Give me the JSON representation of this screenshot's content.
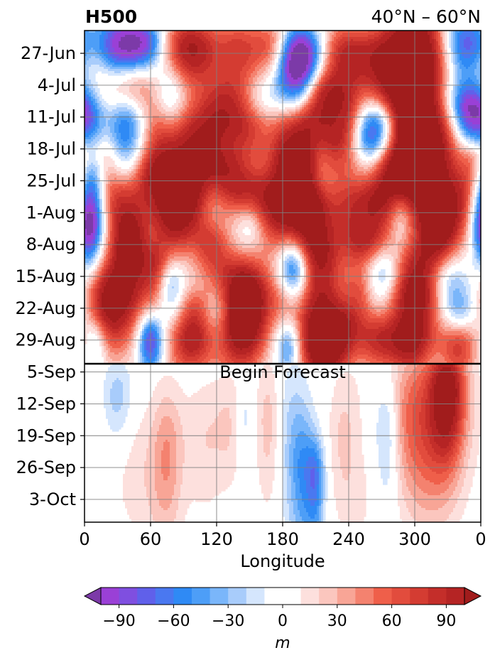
{
  "chart_data": {
    "type": "heatmap",
    "title": "H500",
    "subtitle": "40°N – 60°N",
    "xlabel": "Longitude",
    "ylabel": "",
    "x_ticks": [
      "0",
      "60",
      "120",
      "180",
      "240",
      "300",
      "0"
    ],
    "x_tick_values": [
      0,
      60,
      120,
      180,
      240,
      300,
      360
    ],
    "xlim": [
      0,
      360
    ],
    "y_ticks": [
      "27-Jun",
      "4-Jul",
      "11-Jul",
      "18-Jul",
      "25-Jul",
      "1-Aug",
      "8-Aug",
      "15-Aug",
      "22-Aug",
      "29-Aug",
      "5-Sep",
      "12-Sep",
      "19-Sep",
      "26-Sep",
      "3-Oct"
    ],
    "y_tick_days": [
      5,
      12,
      19,
      26,
      33,
      40,
      47,
      54,
      61,
      68,
      75,
      82,
      89,
      96,
      103
    ],
    "ylim_days": [
      0,
      108
    ],
    "y_inverted": true,
    "grid": true,
    "forecast_line": {
      "day": 73.2,
      "label": "Begin Forecast"
    },
    "colorbar": {
      "label": "m",
      "ticks": [
        -90,
        -60,
        -30,
        0,
        30,
        60,
        90
      ],
      "tick_labels": [
        "−90",
        "−60",
        "−30",
        "0",
        "30",
        "60",
        "90"
      ],
      "range": [
        -105,
        105
      ],
      "step": 10,
      "extend": "both",
      "under_color": "#7c3aa8",
      "over_color": "#a11c1c",
      "colors": [
        "#9a40d6",
        "#7f4fe0",
        "#6060ea",
        "#4a78f0",
        "#2f8af5",
        "#4d9ef7",
        "#7ab6fa",
        "#a8ccfb",
        "#d5e6fd",
        "#ffffff",
        "#ffffff",
        "#fde0dd",
        "#fbc6be",
        "#f8a596",
        "#f4826f",
        "#ef5f4a",
        "#e24c3d",
        "#d43c32",
        "#c42e2a",
        "#b52424"
      ]
    },
    "features": {
      "observed": [
        [
          5,
          30,
          6,
          14,
          6,
          -100
        ],
        [
          3,
          55,
          4,
          14,
          5,
          -95
        ],
        [
          4,
          85,
          5,
          16,
          6,
          75
        ],
        [
          4,
          105,
          5,
          14,
          6,
          60
        ],
        [
          4,
          140,
          5,
          16,
          6,
          70
        ],
        [
          3,
          170,
          4,
          12,
          5,
          50
        ],
        [
          9,
          190,
          6,
          12,
          6,
          -90
        ],
        [
          5,
          200,
          4,
          12,
          5,
          -80
        ],
        [
          5,
          235,
          5,
          14,
          6,
          75
        ],
        [
          6,
          262,
          5,
          16,
          6,
          55
        ],
        [
          5,
          300,
          9,
          20,
          10,
          110
        ],
        [
          3,
          345,
          5,
          14,
          6,
          -85
        ],
        [
          11,
          20,
          4,
          18,
          5,
          60
        ],
        [
          11,
          45,
          4,
          16,
          5,
          55
        ],
        [
          12,
          10,
          3,
          14,
          5,
          -30
        ],
        [
          15,
          78,
          6,
          10,
          7,
          -50
        ],
        [
          16,
          130,
          5,
          18,
          6,
          65
        ],
        [
          16,
          165,
          4,
          14,
          6,
          -40
        ],
        [
          14,
          218,
          4,
          12,
          5,
          75
        ],
        [
          18,
          238,
          5,
          10,
          7,
          60
        ],
        [
          21,
          268,
          4,
          12,
          7,
          -100
        ],
        [
          19,
          295,
          12,
          24,
          16,
          110
        ],
        [
          15,
          335,
          4,
          16,
          6,
          -35
        ],
        [
          18,
          350,
          4,
          12,
          7,
          -95
        ],
        [
          20,
          5,
          4,
          10,
          6,
          -40
        ],
        [
          21,
          38,
          5,
          12,
          8,
          -70
        ],
        [
          23,
          70,
          6,
          14,
          8,
          60
        ],
        [
          22,
          110,
          5,
          22,
          8,
          65
        ],
        [
          22,
          150,
          4,
          12,
          6,
          40
        ],
        [
          21,
          176,
          5,
          16,
          6,
          60
        ],
        [
          22,
          205,
          5,
          14,
          10,
          75
        ],
        [
          25,
          225,
          4,
          10,
          6,
          55
        ],
        [
          26,
          257,
          5,
          10,
          7,
          -60
        ],
        [
          25,
          320,
          6,
          20,
          12,
          70
        ],
        [
          29,
          15,
          4,
          12,
          6,
          55
        ],
        [
          31,
          5,
          4,
          10,
          7,
          -75
        ],
        [
          32,
          60,
          4,
          14,
          6,
          60
        ],
        [
          30,
          95,
          6,
          20,
          8,
          70
        ],
        [
          31,
          130,
          4,
          14,
          5,
          45
        ],
        [
          30,
          190,
          5,
          14,
          8,
          95
        ],
        [
          29,
          215,
          5,
          10,
          6,
          -40
        ],
        [
          30,
          260,
          4,
          14,
          6,
          60
        ],
        [
          31,
          290,
          4,
          16,
          5,
          70
        ],
        [
          29,
          355,
          4,
          10,
          6,
          80
        ],
        [
          37,
          5,
          5,
          10,
          6,
          -80
        ],
        [
          37,
          30,
          4,
          16,
          5,
          60
        ],
        [
          37,
          95,
          5,
          16,
          6,
          55
        ],
        [
          37,
          115,
          4,
          10,
          5,
          -30
        ],
        [
          36,
          150,
          4,
          18,
          5,
          70
        ],
        [
          40,
          175,
          6,
          14,
          7,
          70
        ],
        [
          40,
          205,
          5,
          14,
          7,
          100
        ],
        [
          39,
          240,
          5,
          14,
          6,
          60
        ],
        [
          38,
          265,
          4,
          12,
          5,
          55
        ],
        [
          40,
          288,
          4,
          8,
          5,
          -40
        ],
        [
          39,
          330,
          5,
          18,
          6,
          75
        ],
        [
          44,
          4,
          4,
          8,
          6,
          -85
        ],
        [
          45,
          40,
          4,
          10,
          5,
          55
        ],
        [
          42,
          80,
          5,
          14,
          6,
          70
        ],
        [
          42,
          150,
          4,
          10,
          4,
          -35
        ],
        [
          47,
          115,
          4,
          12,
          5,
          60
        ],
        [
          47,
          255,
          4,
          14,
          5,
          70
        ],
        [
          45,
          320,
          4,
          12,
          5,
          65
        ],
        [
          52,
          40,
          8,
          14,
          10,
          95
        ],
        [
          52,
          65,
          4,
          10,
          7,
          60
        ],
        [
          56,
          78,
          4,
          8,
          5,
          -50
        ],
        [
          55,
          140,
          5,
          18,
          6,
          80
        ],
        [
          53,
          190,
          5,
          10,
          6,
          -100
        ],
        [
          50,
          215,
          5,
          14,
          6,
          75
        ],
        [
          53,
          270,
          4,
          12,
          5,
          -55
        ],
        [
          52,
          302,
          4,
          14,
          6,
          60
        ],
        [
          55,
          330,
          4,
          12,
          5,
          -40
        ],
        [
          60,
          20,
          6,
          14,
          8,
          100
        ],
        [
          62,
          100,
          4,
          12,
          6,
          60
        ],
        [
          62,
          120,
          4,
          10,
          5,
          -35
        ],
        [
          60,
          150,
          5,
          14,
          7,
          80
        ],
        [
          59,
          185,
          4,
          12,
          5,
          55
        ],
        [
          63,
          215,
          6,
          16,
          10,
          100
        ],
        [
          58,
          250,
          4,
          10,
          6,
          50
        ],
        [
          60,
          300,
          5,
          18,
          8,
          95
        ],
        [
          62,
          340,
          4,
          12,
          5,
          -40
        ],
        [
          68,
          10,
          4,
          8,
          5,
          -50
        ],
        [
          68,
          60,
          4,
          8,
          5,
          -100
        ],
        [
          69,
          95,
          4,
          16,
          6,
          70
        ],
        [
          67,
          140,
          5,
          16,
          7,
          85
        ],
        [
          69,
          185,
          4,
          8,
          5,
          -60
        ],
        [
          69,
          215,
          4,
          12,
          6,
          75
        ],
        [
          68,
          265,
          4,
          14,
          5,
          70
        ],
        [
          69,
          295,
          4,
          14,
          6,
          65
        ],
        [
          69,
          340,
          4,
          12,
          6,
          80
        ],
        [
          66,
          235,
          4,
          10,
          6,
          60
        ]
      ],
      "forecast": [
        [
          81,
          30,
          6,
          10,
          8,
          -30
        ],
        [
          90,
          40,
          8,
          18,
          14,
          12
        ],
        [
          92,
          75,
          10,
          10,
          14,
          35
        ],
        [
          90,
          108,
          10,
          14,
          12,
          18
        ],
        [
          86,
          135,
          8,
          12,
          10,
          20
        ],
        [
          86,
          168,
          10,
          8,
          14,
          30
        ],
        [
          88,
          185,
          12,
          12,
          16,
          -20
        ],
        [
          85,
          145,
          5,
          6,
          8,
          -25
        ],
        [
          97,
          198,
          10,
          8,
          14,
          -40
        ],
        [
          98,
          210,
          6,
          6,
          10,
          -55
        ],
        [
          90,
          235,
          8,
          10,
          12,
          18
        ],
        [
          88,
          275,
          8,
          8,
          12,
          -35
        ],
        [
          84,
          292,
          10,
          14,
          14,
          35
        ],
        [
          80,
          325,
          8,
          18,
          14,
          60
        ],
        [
          78,
          330,
          6,
          10,
          10,
          75
        ],
        [
          93,
          315,
          10,
          16,
          14,
          25
        ],
        [
          100,
          60,
          8,
          16,
          14,
          10
        ],
        [
          103,
          250,
          8,
          14,
          12,
          10
        ],
        [
          78,
          240,
          6,
          14,
          10,
          8
        ]
      ]
    }
  }
}
